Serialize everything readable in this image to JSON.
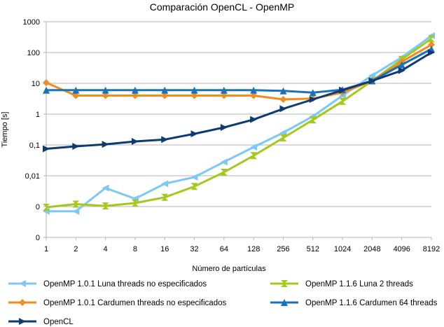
{
  "chart_data": {
    "type": "line",
    "title": "Comparación OpenCL - OpenMP",
    "xlabel": "Número de partículas",
    "ylabel": "Tiempo [s]",
    "yscale": "log",
    "ylim": [
      0.0001,
      1000
    ],
    "categories": [
      "1",
      "2",
      "4",
      "8",
      "16",
      "32",
      "64",
      "128",
      "256",
      "512",
      "1024",
      "2048",
      "4096",
      "8192"
    ],
    "y_tick_labels": [
      {
        "value": 0.0001,
        "label": "0"
      },
      {
        "value": 0.001,
        "label": "0"
      },
      {
        "value": 0.01,
        "label": "0,01"
      },
      {
        "value": 0.1,
        "label": "0,1"
      },
      {
        "value": 1,
        "label": "1"
      },
      {
        "value": 10,
        "label": "10"
      },
      {
        "value": 100,
        "label": "100"
      },
      {
        "value": 1000,
        "label": "1000"
      }
    ],
    "grid": "horizontal",
    "legend_position": "bottom",
    "series": [
      {
        "name": "OpenMP 1.0.1 Luna threads no especificados",
        "color": "#7ec8f5",
        "marker": "triangle-left",
        "values": [
          0.0007,
          0.0007,
          0.004,
          0.0018,
          0.0055,
          0.009,
          0.028,
          0.085,
          0.25,
          0.85,
          4,
          18,
          70,
          350
        ]
      },
      {
        "name": "OpenMP 1.1.6 Luna 2 threads",
        "color": "#a5c81e",
        "marker": "hourglass",
        "values": [
          0.00095,
          0.0012,
          0.00105,
          0.0013,
          0.002,
          0.0045,
          0.013,
          0.045,
          0.17,
          0.65,
          2.6,
          12,
          60,
          280
        ]
      },
      {
        "name": "OpenMP 1.0.1 Cardumen threads no especificados",
        "color": "#f28c1e",
        "marker": "diamond",
        "values": [
          10.5,
          4,
          4,
          4,
          4,
          4,
          4,
          4,
          3,
          3.2,
          5,
          12,
          50,
          180
        ]
      },
      {
        "name": "OpenMP 1.1.6 Cardumen 64 threads",
        "color": "#1a72b8",
        "marker": "triangle-up",
        "values": [
          6,
          6,
          6,
          6,
          6,
          6,
          6,
          6,
          5.7,
          5,
          6.2,
          12,
          40,
          130
        ]
      },
      {
        "name": "OpenCL",
        "color": "#0e3b73",
        "marker": "triangle-right",
        "values": [
          0.075,
          0.09,
          0.105,
          0.13,
          0.15,
          0.23,
          0.37,
          0.67,
          1.5,
          3,
          6,
          12,
          26,
          100
        ]
      }
    ]
  }
}
